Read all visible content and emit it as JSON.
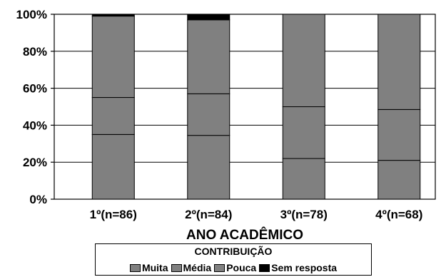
{
  "chart_data": {
    "type": "bar",
    "stacked": true,
    "percent": true,
    "categories": [
      "1º(n=86)",
      "2º(n=84)",
      "3º(n=78)",
      "4º(n=68)"
    ],
    "series": [
      {
        "name": "Muita",
        "values": [
          35,
          34.5,
          22,
          21
        ],
        "color": "#808080"
      },
      {
        "name": "Média",
        "values": [
          20,
          22.5,
          28,
          27.5
        ],
        "color": "#808080"
      },
      {
        "name": "Pouca",
        "values": [
          44,
          40,
          50,
          51.5
        ],
        "color": "#808080"
      },
      {
        "name": "Sem resposta",
        "values": [
          1,
          3,
          0,
          0
        ],
        "color": "#000000"
      }
    ],
    "y_ticks": [
      "0%",
      "20%",
      "40%",
      "60%",
      "80%",
      "100%"
    ],
    "ylim": [
      0,
      100
    ],
    "xlabel": "ANO ACADÊMICO",
    "legend_title": "CONTRIBUIÇÃO",
    "legend_position": "bottom",
    "grid": true
  }
}
